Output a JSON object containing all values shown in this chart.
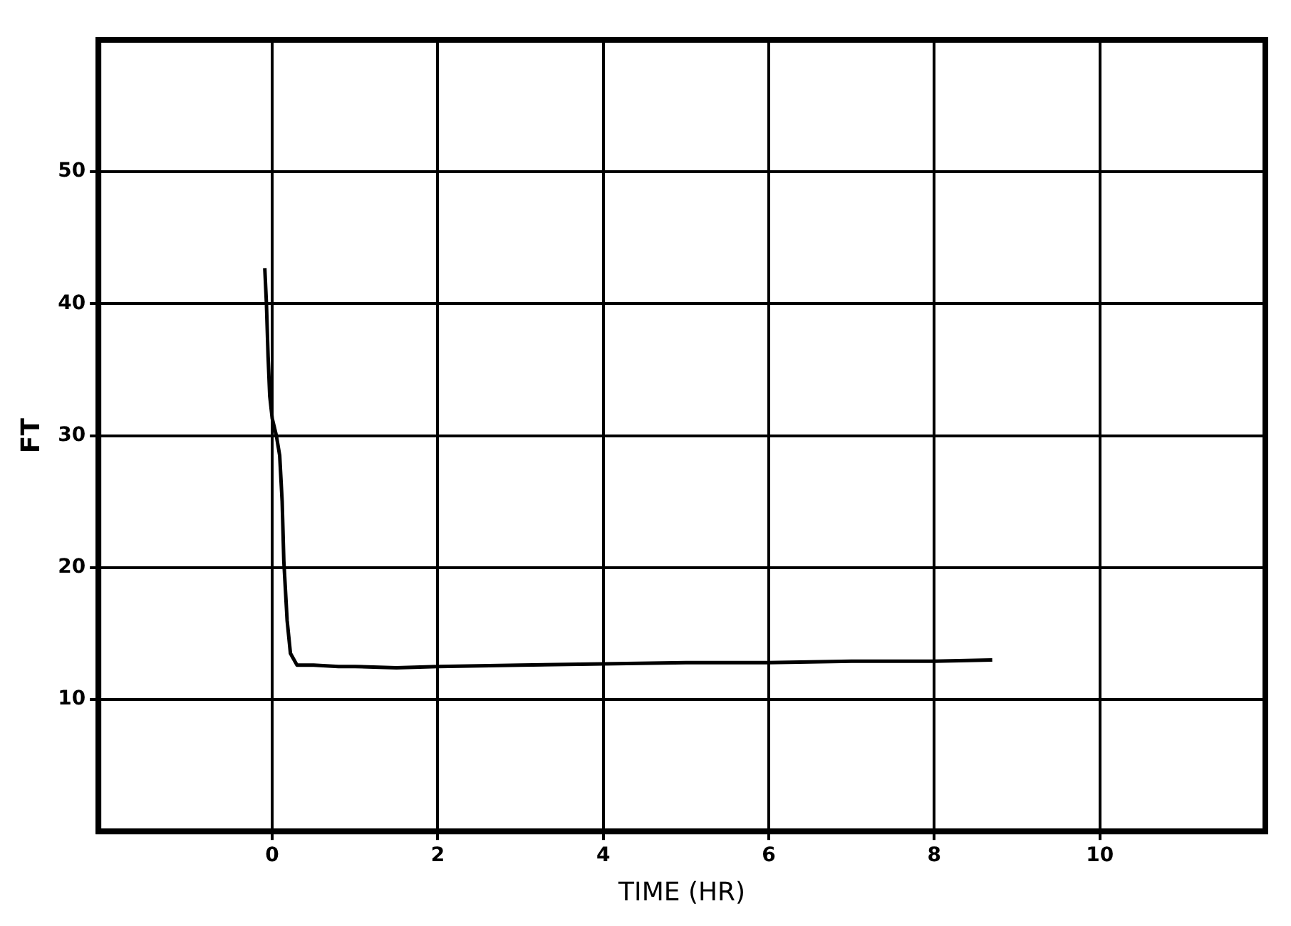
{
  "chart_data": {
    "type": "line",
    "xlabel": "TIME (HR)",
    "ylabel": "FT",
    "series": [
      {
        "color": "#000000",
        "x": [
          -0.09,
          -0.07,
          -0.05,
          -0.03,
          0,
          0.05,
          0.09,
          0.12,
          0.14,
          0.18,
          0.22,
          0.3,
          0.5,
          0.8,
          1,
          1.5,
          2,
          3,
          4,
          5,
          6,
          7,
          8,
          8.7
        ],
        "values": [
          42.7,
          40,
          36,
          33,
          31.3,
          30,
          28.5,
          25,
          20.5,
          16,
          13.5,
          12.6,
          12.6,
          12.5,
          12.5,
          12.4,
          12.5,
          12.6,
          12.7,
          12.8,
          12.8,
          12.9,
          12.9,
          13
        ]
      }
    ],
    "xlim": [
      -2.1,
      12
    ],
    "xticks": [
      0,
      2,
      4,
      6,
      8,
      10
    ],
    "ylim": [
      0,
      60
    ],
    "yticks": [
      10,
      20,
      30,
      40,
      50
    ],
    "grid": true,
    "marker": "none",
    "line_style": "solid"
  }
}
